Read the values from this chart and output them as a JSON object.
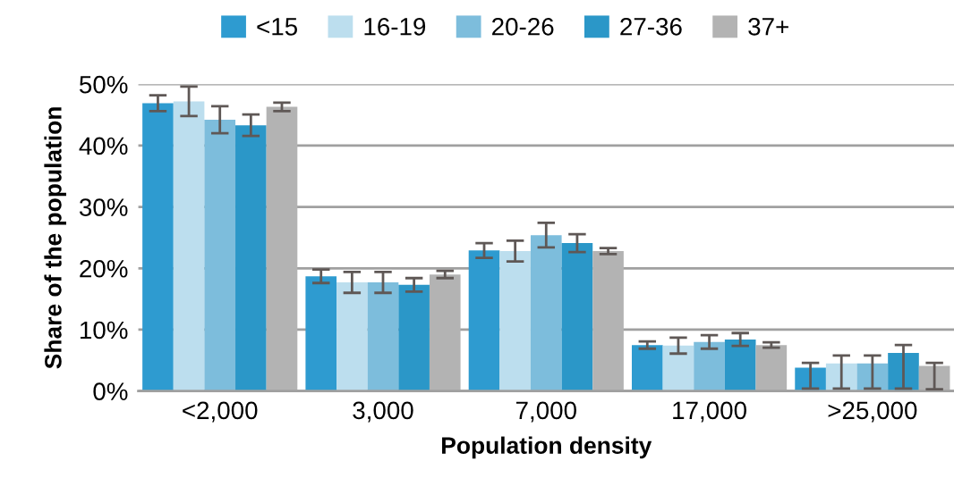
{
  "chart_data": {
    "type": "bar",
    "xlabel": "Population density",
    "ylabel": "Share of the population",
    "categories": [
      "<2,000",
      "3,000",
      "7,000",
      "17,000",
      ">25,000"
    ],
    "series": [
      {
        "name": "<15",
        "color": "#2e9bd0",
        "values": [
          46.9,
          18.7,
          22.9,
          7.5,
          3.8
        ],
        "errors": [
          1.3,
          1.1,
          1.2,
          0.6,
          [
            0.4,
            4.6
          ]
        ]
      },
      {
        "name": "16-19",
        "color": "#bcdeee",
        "values": [
          47.2,
          17.7,
          22.8,
          7.4,
          4.5
        ],
        "errors": [
          2.4,
          1.7,
          1.7,
          1.3,
          [
            0.4,
            5.8
          ]
        ]
      },
      {
        "name": "20-26",
        "color": "#7dbddc",
        "values": [
          44.2,
          17.7,
          25.4,
          8.0,
          4.5
        ],
        "errors": [
          2.2,
          1.7,
          2.0,
          1.1,
          [
            0.4,
            5.8
          ]
        ]
      },
      {
        "name": "27-36",
        "color": "#2b97c8",
        "values": [
          43.3,
          17.3,
          24.1,
          8.4,
          6.2
        ],
        "errors": [
          1.75,
          1.1,
          1.45,
          1.05,
          [
            0.4,
            7.5
          ]
        ]
      },
      {
        "name": "37+",
        "color": "#b3b3b3",
        "values": [
          46.3,
          19.0,
          22.8,
          7.5,
          4.1
        ],
        "errors": [
          0.7,
          0.6,
          0.5,
          0.45,
          [
            0.3,
            4.6
          ]
        ]
      }
    ],
    "ylim": [
      0,
      50
    ],
    "yticks": [
      {
        "value": 0,
        "label": "0%"
      },
      {
        "value": 10,
        "label": "10%"
      },
      {
        "value": 20,
        "label": "20%"
      },
      {
        "value": 30,
        "label": "30%"
      },
      {
        "value": 40,
        "label": "40%"
      },
      {
        "value": 50,
        "label": "50%"
      }
    ],
    "grid": "y",
    "legend": "top"
  }
}
